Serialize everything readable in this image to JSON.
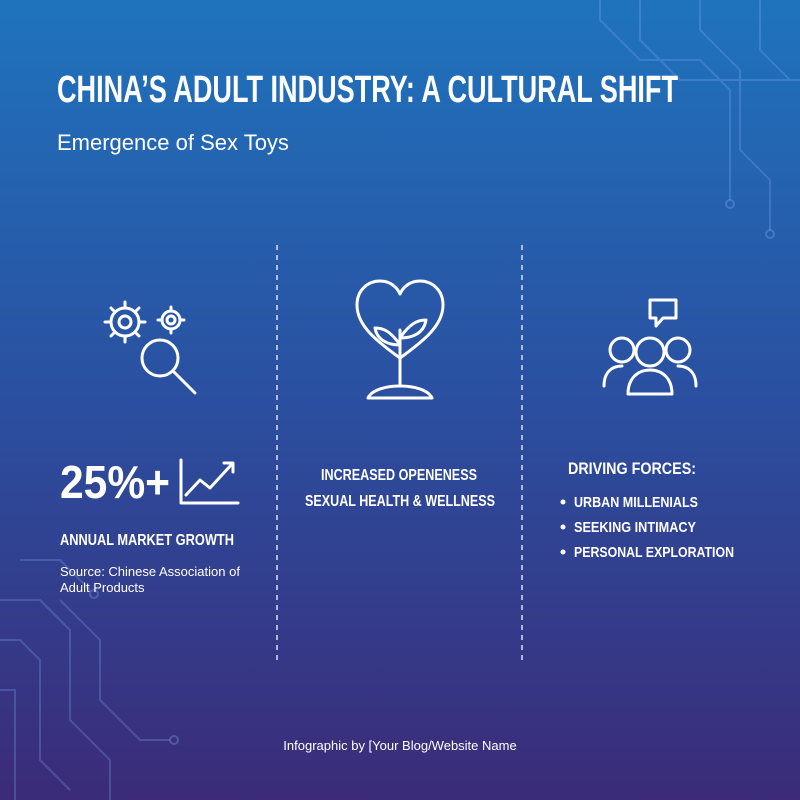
{
  "header": {
    "title": "CHINA’S ADULT INDUSTRY: A CULTURAL SHIFT",
    "subtitle": "Emergence of Sex Toys"
  },
  "columns": [
    {
      "stat": "25%+",
      "label": "ANNUAL MARKET GROWTH",
      "source": [
        "Source: Chinese Association of",
        "Adult Products"
      ]
    },
    {
      "lines": [
        "INCREASED OPENENESS",
        "SEXUAL HEALTH & WELLNESS"
      ]
    },
    {
      "heading": "DRIVING FORCES:",
      "items": [
        "URBAN MILLENIALS",
        "SEEKING INTIMACY",
        "PERSONAL EXPLORATION"
      ]
    }
  ],
  "footer": "Infographic by [Your Blog/Website Name"
}
